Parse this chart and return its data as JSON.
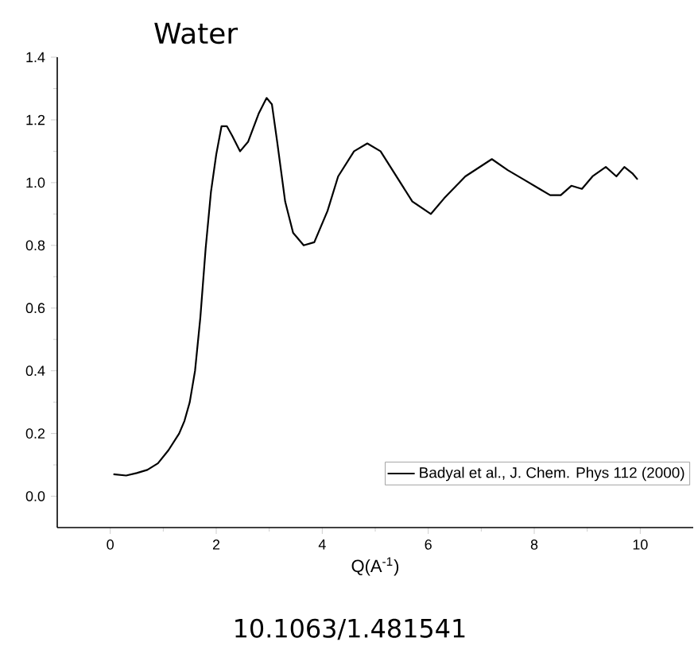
{
  "chart_data": {
    "type": "line",
    "title": "Water",
    "xlabel": "Q(A$^{-1}$)",
    "annotations": [
      "10.1063/1.481541"
    ],
    "x": [
      0.06,
      0.3,
      0.5,
      0.7,
      0.9,
      1.1,
      1.3,
      1.4,
      1.5,
      1.6,
      1.7,
      1.8,
      1.9,
      2.0,
      2.1,
      2.2,
      2.3,
      2.45,
      2.6,
      2.8,
      2.95,
      3.05,
      3.15,
      3.3,
      3.45,
      3.65,
      3.85,
      4.1,
      4.3,
      4.6,
      4.85,
      5.1,
      5.4,
      5.7,
      6.05,
      6.3,
      6.7,
      7.2,
      7.5,
      7.8,
      8.1,
      8.3,
      8.5,
      8.7,
      8.9,
      9.1,
      9.35,
      9.55,
      9.7,
      9.85,
      9.95
    ],
    "series": [
      {
        "name": "Badyal et al., J. Chem. Phys 112 (2000)",
        "color": "#000000",
        "values": [
          0.07,
          0.066,
          0.074,
          0.084,
          0.105,
          0.147,
          0.2,
          0.24,
          0.3,
          0.4,
          0.57,
          0.79,
          0.97,
          1.09,
          1.18,
          1.18,
          1.15,
          1.1,
          1.13,
          1.22,
          1.27,
          1.25,
          1.13,
          0.94,
          0.84,
          0.8,
          0.81,
          0.91,
          1.02,
          1.1,
          1.125,
          1.1,
          1.02,
          0.94,
          0.9,
          0.95,
          1.02,
          1.075,
          1.04,
          1.01,
          0.98,
          0.96,
          0.96,
          0.99,
          0.98,
          1.02,
          1.05,
          1.02,
          1.05,
          1.03,
          1.01
        ]
      }
    ],
    "xlim": [
      -1,
      11
    ],
    "ylim": [
      -0.1,
      1.4
    ],
    "xticks": [
      0,
      2,
      4,
      6,
      8,
      10
    ],
    "yticks": [
      {
        "value": 0,
        "label": "0.0"
      },
      0.2,
      0.4,
      0.6,
      0.8,
      {
        "value": 1,
        "label": "1.0"
      },
      1.2,
      1.4
    ],
    "legend": "bottom right",
    "grid": false,
    "marker": "none",
    "line_style": "solid"
  }
}
